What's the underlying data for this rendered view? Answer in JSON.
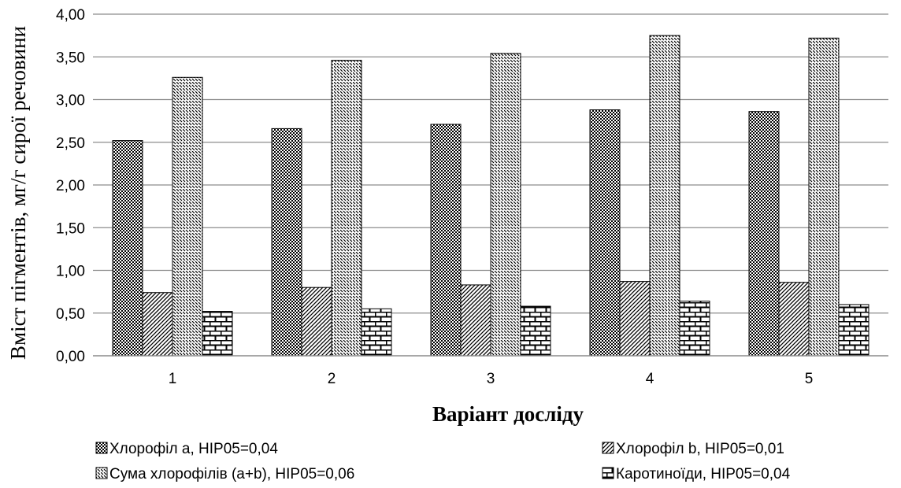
{
  "chart_data": {
    "type": "bar",
    "categories": [
      "1",
      "2",
      "3",
      "4",
      "5"
    ],
    "series": [
      {
        "name": "Хлорофіл а, НІР05=0,04",
        "values": [
          2.52,
          2.66,
          2.71,
          2.88,
          2.86
        ],
        "pattern": "checker"
      },
      {
        "name": "Хлорофіл b, НІР05=0,01",
        "values": [
          0.74,
          0.8,
          0.83,
          0.87,
          0.86
        ],
        "pattern": "diagonal-dense"
      },
      {
        "name": "Сума хлорофілів (a+b), НІР05=0,06",
        "values": [
          3.26,
          3.46,
          3.54,
          3.75,
          3.72
        ],
        "pattern": "diagonal-dash"
      },
      {
        "name": "Каротиноїди, НІР05=0,04",
        "values": [
          0.52,
          0.55,
          0.58,
          0.64,
          0.6
        ],
        "pattern": "brick"
      }
    ],
    "xlabel": "Варіант досліду",
    "ylabel": "Вміст пігментів, мг/г сирої речовини",
    "ylim": [
      0,
      4
    ],
    "yticks": [
      "0,00",
      "0,50",
      "1,00",
      "1,50",
      "2,00",
      "2,50",
      "3,00",
      "3,50",
      "4,00"
    ],
    "grid": true,
    "legend_position": "bottom"
  }
}
